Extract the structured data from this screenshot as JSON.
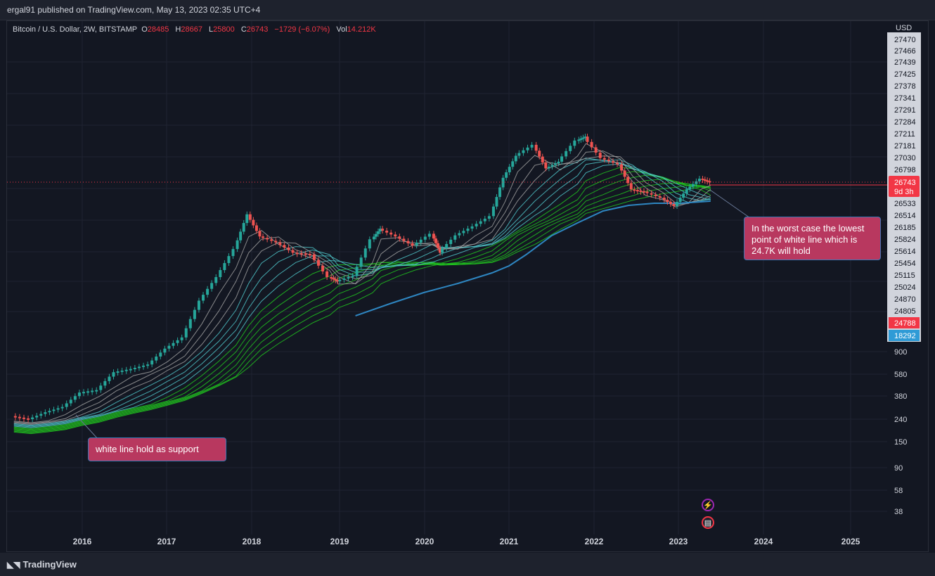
{
  "header": {
    "publisher": "ergal91 published on TradingView.com, May 13, 2023 02:35 UTC+4"
  },
  "legend": {
    "symbol": "Bitcoin / U.S. Dollar, 2W, BITSTAMP",
    "open_label": "O",
    "open": "28485",
    "high_label": "H",
    "high": "28667",
    "low_label": "L",
    "low": "25800",
    "close_label": "C",
    "close": "26743",
    "change": "−1729 (−6.07%)",
    "vol_label": "Vol",
    "vol": "14.212K"
  },
  "price_axis": {
    "currency": "USD",
    "labels": [
      "27470",
      "27466",
      "27439",
      "27425",
      "27378",
      "27341",
      "27291",
      "27284",
      "27211",
      "27181",
      "27030",
      "26798",
      "26533",
      "26514",
      "26185",
      "25824",
      "25614",
      "25454",
      "25115",
      "25024",
      "24870",
      "24805",
      "900",
      "580",
      "380",
      "240",
      "150",
      "90",
      "58",
      "38"
    ],
    "current_price": "26743",
    "countdown": "9d 3h",
    "tag_red": "24788",
    "tag_blue": "18292"
  },
  "time_axis": {
    "labels": [
      "2016",
      "2017",
      "2018",
      "2019",
      "2020",
      "2021",
      "2022",
      "2023",
      "2024",
      "2025"
    ]
  },
  "annotations": {
    "note_right": "In the worst case the lowest point of white line which is 24.7K will hold",
    "note_left": "white line hold as support"
  },
  "footer": {
    "brand": "TradingView"
  },
  "colors": {
    "background": "#131722",
    "up": "#26a69a",
    "down": "#ef5350",
    "ribbon_green": "#21c41e",
    "ribbon_gray": "#9e9e9e",
    "long_ma": "#2e86c1",
    "callout": "#b8385f",
    "price_tag": "#f23645"
  },
  "chart_data": {
    "type": "line",
    "scale": "log",
    "series": [
      {
        "x": [
          2015.2,
          2015.4,
          2015.6,
          2015.8,
          2016.0,
          2016.2,
          2016.4,
          2016.6,
          2016.8,
          2017.0,
          2017.2,
          2017.4,
          2017.6,
          2017.8,
          2017.95,
          2018.1,
          2018.3,
          2018.5,
          2018.7,
          2018.9,
          2019.0,
          2019.2,
          2019.4,
          2019.5,
          2019.7,
          2019.9,
          2020.1,
          2020.2,
          2020.4,
          2020.6,
          2020.8,
          2020.95,
          2021.1,
          2021.3,
          2021.45,
          2021.6,
          2021.8,
          2021.9,
          2022.1,
          2022.3,
          2022.45,
          2022.6,
          2022.8,
          2022.95,
          2023.1,
          2023.25,
          2023.36
        ],
        "values": [
          250,
          235,
          270,
          300,
          400,
          420,
          600,
          640,
          700,
          960,
          1200,
          2500,
          4000,
          7000,
          14000,
          9000,
          8000,
          6500,
          6300,
          4000,
          3700,
          4100,
          8500,
          10500,
          9000,
          7500,
          9500,
          6500,
          9200,
          11000,
          13500,
          29000,
          45000,
          56000,
          35000,
          40000,
          61000,
          66000,
          43000,
          38000,
          23000,
          22000,
          19500,
          16500,
          23000,
          28500,
          26743
        ]
      }
    ]
  }
}
